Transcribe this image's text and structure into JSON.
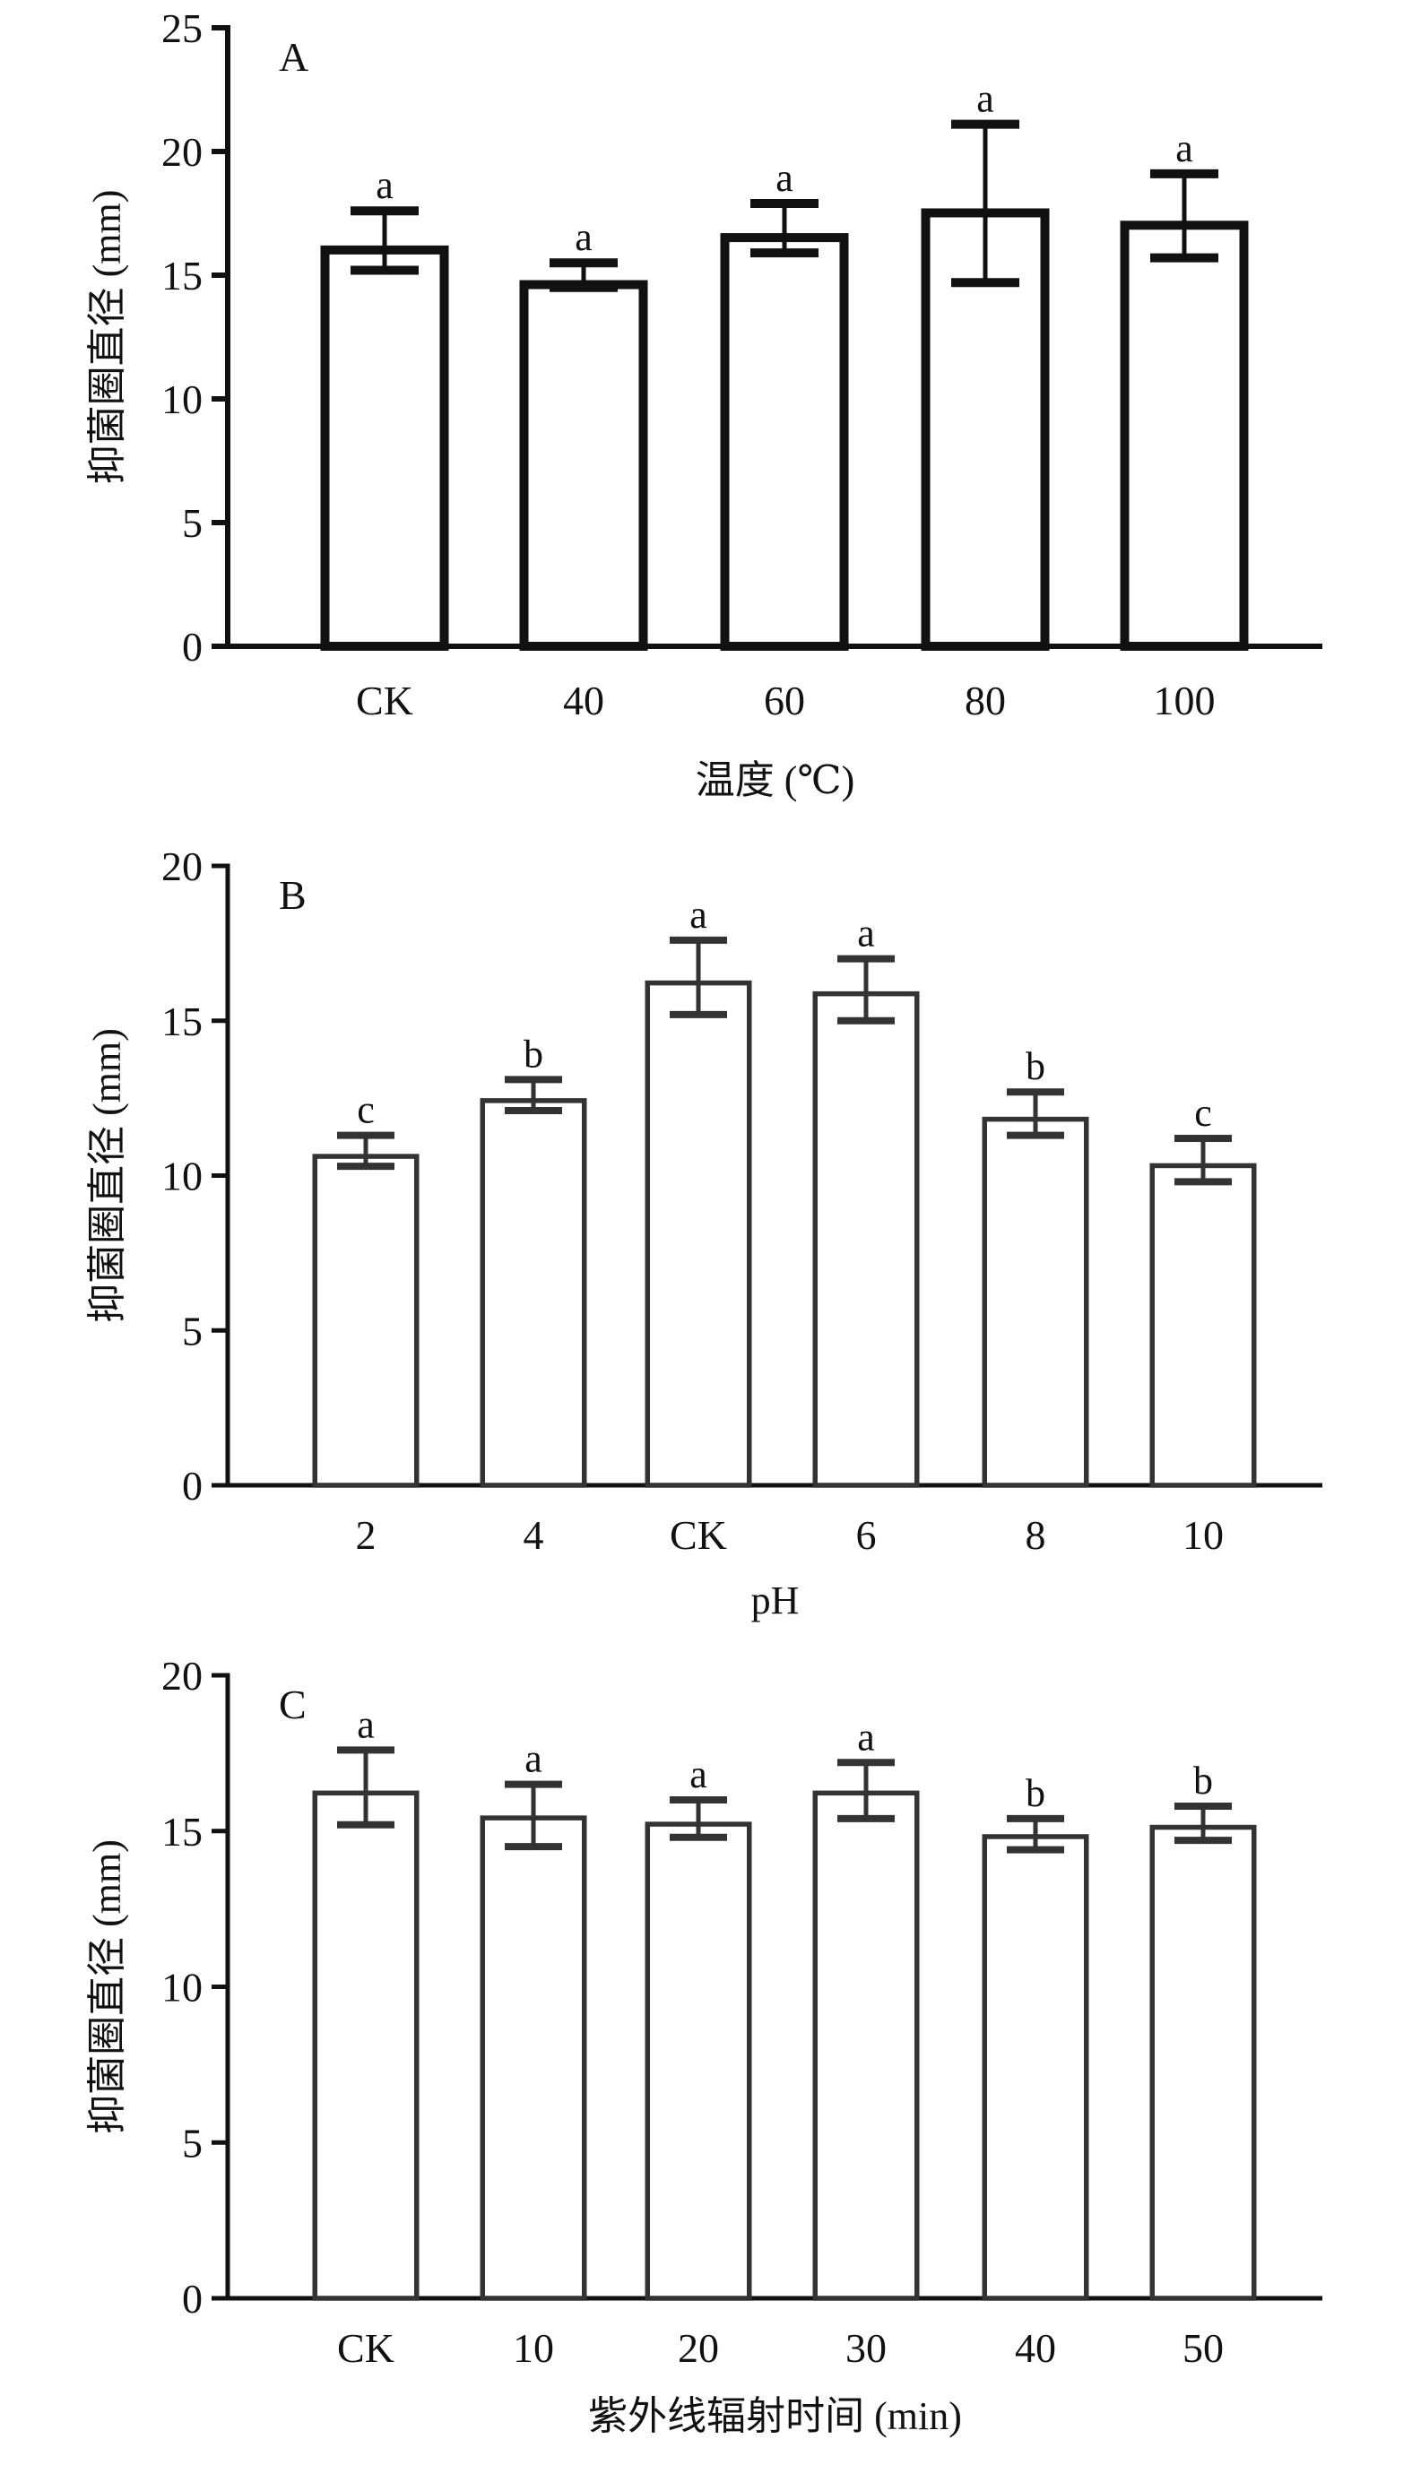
{
  "chart_data": [
    {
      "type": "bar",
      "panel_label": "A",
      "title": "",
      "xlabel": "温度 (℃)",
      "ylabel": "抑菌圈直径 (mm)",
      "ylim": [
        0,
        25
      ],
      "yticks": [
        0,
        5,
        10,
        15,
        20,
        25
      ],
      "categories": [
        "CK",
        "40",
        "60",
        "80",
        "100"
      ],
      "values": [
        16.2,
        14.8,
        16.7,
        17.7,
        17.2
      ],
      "error_upper": [
        17.6,
        15.5,
        17.9,
        21.1,
        19.1
      ],
      "error_lower": [
        15.2,
        14.5,
        15.9,
        14.7,
        15.7
      ],
      "significance": [
        "a",
        "a",
        "a",
        "a",
        "a"
      ],
      "grid": false,
      "color": "#111111"
    },
    {
      "type": "bar",
      "panel_label": "B",
      "title": "",
      "xlabel": "pH",
      "ylabel": "抑菌圈直径 (mm)",
      "ylim": [
        0,
        20
      ],
      "yticks": [
        0,
        5,
        10,
        15,
        20
      ],
      "categories": [
        "2",
        "4",
        "CK",
        "6",
        "8",
        "10"
      ],
      "values": [
        10.7,
        12.5,
        16.3,
        15.95,
        11.9,
        10.4
      ],
      "error_upper": [
        11.3,
        13.1,
        17.6,
        17.0,
        12.7,
        11.2
      ],
      "error_lower": [
        10.3,
        12.1,
        15.2,
        15.0,
        11.3,
        9.8
      ],
      "significance": [
        "c",
        "b",
        "a",
        "a",
        "b",
        "c"
      ],
      "grid": false,
      "color": "#333333"
    },
    {
      "type": "bar",
      "panel_label": "C",
      "title": "",
      "xlabel": "紫外线辐射时间 (min)",
      "ylabel": "抑菌圈直径 (mm)",
      "ylim": [
        0,
        20
      ],
      "yticks": [
        0,
        5,
        10,
        15,
        20
      ],
      "categories": [
        "CK",
        "10",
        "20",
        "30",
        "40",
        "50"
      ],
      "values": [
        16.3,
        15.5,
        15.3,
        16.3,
        14.9,
        15.2
      ],
      "error_upper": [
        17.6,
        16.5,
        16.0,
        17.2,
        15.4,
        15.8
      ],
      "error_lower": [
        15.2,
        14.5,
        14.8,
        15.4,
        14.4,
        14.7
      ],
      "significance": [
        "a",
        "a",
        "a",
        "a",
        "b",
        "b"
      ],
      "grid": false,
      "color": "#333333"
    }
  ]
}
